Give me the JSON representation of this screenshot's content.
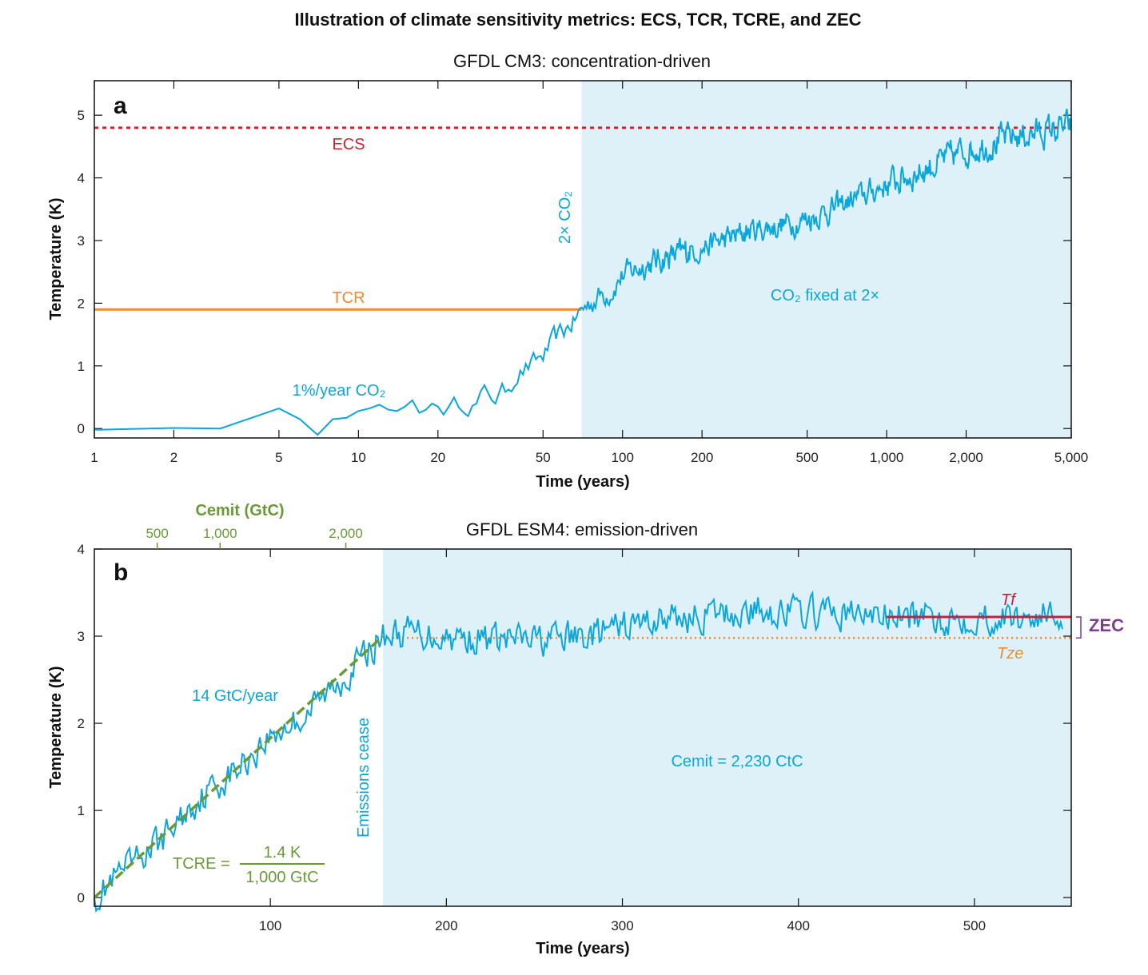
{
  "figure": {
    "title": "Illustration of climate sensitivity metrics: ECS, TCR, TCRE, and ZEC"
  },
  "colors": {
    "temperature": "#0aa6dc",
    "shade": "#dff1f8",
    "ecs": "#d6202f",
    "tcr": "#ef8a2e",
    "tcre": "#6a9a36",
    "zec": "#7b3f8c",
    "tf": "#c8203a"
  },
  "panel_a": {
    "letter": "a",
    "subtitle": "GFDL CM3: concentration-driven",
    "labels": {
      "ecs": "ECS",
      "tcr": "TCR",
      "doubling": "2× CO₂",
      "ramp": "1%/year CO₂",
      "fixed": "CO₂ fixed at 2×"
    }
  },
  "panel_b": {
    "letter": "b",
    "subtitle": "GFDL ESM4: emission-driven",
    "labels": {
      "rate": "14 GtC/year",
      "cease": "Emissions cease",
      "total": "Cemit = 2,230 CtC",
      "tcre_lhs": "TCRE =",
      "tcre_num": "1.4 K",
      "tcre_den": "1,000 GtC",
      "tf": "Tf",
      "tze": "Tze",
      "zec": "ZEC",
      "top_axis_title": "Cemit (GtC)"
    }
  },
  "chart_data": [
    {
      "type": "line",
      "panel": "a",
      "title": "GFDL CM3: concentration-driven",
      "xlabel": "Time (years)",
      "ylabel": "Temperature (K)",
      "xscale": "log",
      "xlim": [
        1,
        5000
      ],
      "ylim": [
        -0.15,
        5.55
      ],
      "xticks": [
        1,
        2,
        5,
        10,
        20,
        50,
        100,
        200,
        500,
        1000,
        2000,
        5000
      ],
      "xtick_labels": [
        "1",
        "2",
        "5",
        "10",
        "20",
        "50",
        "100",
        "200",
        "500",
        "1,000",
        "2,000",
        "5,000"
      ],
      "yticks": [
        0,
        1,
        2,
        3,
        4,
        5
      ],
      "ytick_labels": [
        "0",
        "1",
        "2",
        "3",
        "4",
        "5"
      ],
      "shaded_from_x": 70,
      "hlines": [
        {
          "name": "ECS",
          "y": 4.8,
          "style": "dashed",
          "x_range": [
            1,
            5000
          ]
        },
        {
          "name": "TCR",
          "y": 1.9,
          "style": "solid",
          "x_range": [
            1,
            70
          ]
        }
      ],
      "series": [
        {
          "name": "Temperature",
          "x": [
            1,
            2,
            3,
            4,
            5,
            6,
            7,
            8,
            9,
            10,
            11,
            12,
            13,
            14,
            15,
            16,
            17,
            18,
            19,
            20,
            22,
            25,
            28,
            30,
            33,
            36,
            40,
            45,
            50,
            55,
            60,
            65,
            70,
            80,
            90,
            100,
            120,
            150,
            200,
            300,
            500,
            700,
            1000,
            1500,
            2000,
            3000,
            4000,
            5000
          ],
          "values": [
            -0.02,
            0.01,
            0.0,
            0.18,
            0.32,
            0.15,
            -0.1,
            0.15,
            0.17,
            0.28,
            0.32,
            0.38,
            0.3,
            0.28,
            0.35,
            0.45,
            0.25,
            0.3,
            0.4,
            0.35,
            0.32,
            0.42,
            0.4,
            0.55,
            0.5,
            0.6,
            0.9,
            1.0,
            1.15,
            1.4,
            1.55,
            1.7,
            1.9,
            2.1,
            2.2,
            2.45,
            2.6,
            2.75,
            2.9,
            3.15,
            3.35,
            3.6,
            3.9,
            4.2,
            4.45,
            4.65,
            4.75,
            4.8
          ]
        }
      ]
    },
    {
      "type": "line",
      "panel": "b",
      "title": "GFDL ESM4: emission-driven",
      "xlabel": "Time (years)",
      "ylabel": "Temperature (K)",
      "xlim": [
        0,
        555
      ],
      "ylim": [
        -0.1,
        4.0
      ],
      "xticks": [
        100,
        200,
        300,
        400,
        500
      ],
      "xtick_labels": [
        "100",
        "200",
        "300",
        "400",
        "500"
      ],
      "yticks": [
        0,
        1,
        2,
        3,
        4
      ],
      "ytick_labels": [
        "0",
        "1",
        "2",
        "3",
        "4"
      ],
      "top_axis": {
        "title": "Cemit (GtC)",
        "ticks": [
          500,
          1000,
          2000
        ],
        "tick_labels": [
          "500",
          "1,000",
          "2,000"
        ]
      },
      "shaded_from_x": 164,
      "tcre_line": {
        "x": [
          0,
          164
        ],
        "y": [
          0,
          3.0
        ]
      },
      "hlines": [
        {
          "name": "Tf",
          "y": 3.22,
          "style": "solid",
          "x_range": [
            450,
            555
          ]
        },
        {
          "name": "Tze",
          "y": 2.98,
          "style": "dotted",
          "x_range": [
            164,
            555
          ]
        }
      ],
      "zec": {
        "from": 2.98,
        "to": 3.22
      },
      "series": [
        {
          "name": "Temperature",
          "x": [
            0,
            20,
            40,
            60,
            80,
            100,
            120,
            140,
            164,
            180,
            200,
            220,
            250,
            280,
            300,
            320,
            340,
            360,
            380,
            400,
            420,
            440,
            460,
            480,
            500,
            520,
            540,
            550
          ],
          "values": [
            0.0,
            0.35,
            0.7,
            1.15,
            1.45,
            1.85,
            2.1,
            2.5,
            3.0,
            3.05,
            3.0,
            2.97,
            2.95,
            3.0,
            3.1,
            3.2,
            3.22,
            3.25,
            3.3,
            3.28,
            3.25,
            3.25,
            3.22,
            3.2,
            3.22,
            3.2,
            3.25,
            3.22
          ]
        }
      ]
    }
  ]
}
